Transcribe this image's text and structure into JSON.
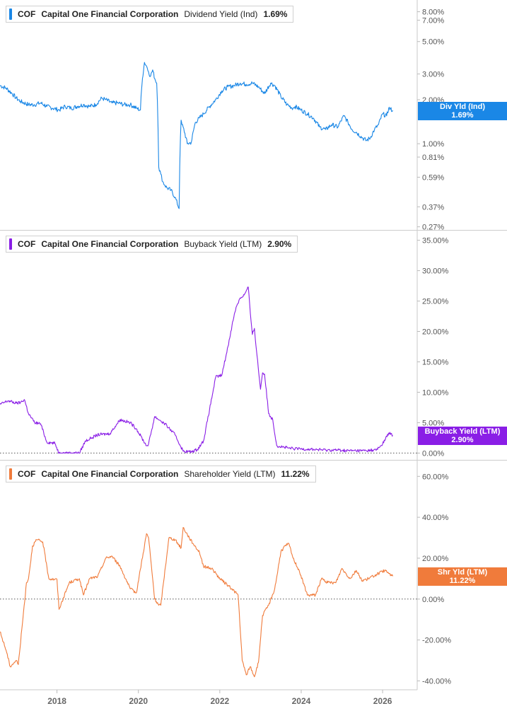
{
  "chart_data": [
    {
      "type": "line",
      "legend": {
        "ticker": "COF",
        "company": "Capital One Financial Corporation",
        "metric": "Dividend Yield (Ind)",
        "value": "1.69%"
      },
      "flag": {
        "label": "Div Yld (Ind)",
        "value": "1.69%"
      },
      "color": "#1a87e6",
      "yscale": "log",
      "ylim": [
        0.26,
        9.0
      ],
      "yticks": [
        {
          "v": 8.0,
          "label": "8.00%"
        },
        {
          "v": 7.0,
          "label": "7.00%"
        },
        {
          "v": 5.0,
          "label": "5.00%"
        },
        {
          "v": 3.0,
          "label": "3.00%"
        },
        {
          "v": 2.0,
          "label": "2.00%"
        },
        {
          "v": 1.0,
          "label": "1.00%"
        },
        {
          "v": 0.81,
          "label": "0.81%"
        },
        {
          "v": 0.59,
          "label": "0.59%"
        },
        {
          "v": 0.37,
          "label": "0.37%"
        },
        {
          "v": 0.27,
          "label": "0.27%"
        }
      ],
      "zero_line": false,
      "x": [
        2016.6,
        2016.75,
        2016.9,
        2017.0,
        2017.1,
        2017.3,
        2017.45,
        2017.6,
        2017.75,
        2017.9,
        2018.05,
        2018.2,
        2018.35,
        2018.5,
        2018.65,
        2018.8,
        2018.95,
        2019.1,
        2019.2,
        2019.35,
        2019.5,
        2019.65,
        2019.8,
        2019.95,
        2020.05,
        2020.1,
        2020.15,
        2020.2,
        2020.25,
        2020.3,
        2020.35,
        2020.4,
        2020.45,
        2020.5,
        2020.55,
        2020.6,
        2020.65,
        2020.7,
        2020.8,
        2020.9,
        2021.0,
        2021.05,
        2021.07,
        2021.1,
        2021.2,
        2021.3,
        2021.4,
        2021.5,
        2021.6,
        2021.75,
        2021.9,
        2022.05,
        2022.2,
        2022.35,
        2022.5,
        2022.65,
        2022.8,
        2022.95,
        2023.1,
        2023.25,
        2023.35,
        2023.5,
        2023.65,
        2023.8,
        2023.85,
        2024.0,
        2024.15,
        2024.3,
        2024.45,
        2024.6,
        2024.75,
        2024.9,
        2025.05,
        2025.15,
        2025.25,
        2025.35,
        2025.5,
        2025.6,
        2025.7,
        2025.8,
        2025.9,
        2026.0,
        2026.1,
        2026.15,
        2026.25
      ],
      "values": [
        2.5,
        2.4,
        2.2,
        2.05,
        1.95,
        1.85,
        1.85,
        1.9,
        1.8,
        1.75,
        1.7,
        1.8,
        1.75,
        1.8,
        1.85,
        1.8,
        1.85,
        2.05,
        2.0,
        1.9,
        1.9,
        1.85,
        1.85,
        1.75,
        1.7,
        2.8,
        3.6,
        3.4,
        3.1,
        2.9,
        3.2,
        2.8,
        2.6,
        0.69,
        0.62,
        0.55,
        0.52,
        0.5,
        0.48,
        0.43,
        0.36,
        1.45,
        1.35,
        1.3,
        1.0,
        1.02,
        1.4,
        1.5,
        1.6,
        1.8,
        2.0,
        2.3,
        2.45,
        2.5,
        2.6,
        2.55,
        2.6,
        2.45,
        2.2,
        2.6,
        2.5,
        2.1,
        1.85,
        1.75,
        1.8,
        1.7,
        1.6,
        1.5,
        1.3,
        1.25,
        1.35,
        1.3,
        1.55,
        1.4,
        1.25,
        1.2,
        1.1,
        1.05,
        1.1,
        1.25,
        1.35,
        1.6,
        1.55,
        1.75,
        1.69
      ]
    },
    {
      "type": "line",
      "legend": {
        "ticker": "COF",
        "company": "Capital One Financial Corporation",
        "metric": "Buyback Yield (LTM)",
        "value": "2.90%"
      },
      "flag": {
        "label": "Buyback Yield (LTM)",
        "value": "2.90%"
      },
      "color": "#8a1ee6",
      "yscale": "linear",
      "ylim": [
        -1.0,
        36.0
      ],
      "yticks": [
        {
          "v": 35,
          "label": "35.00%"
        },
        {
          "v": 30,
          "label": "30.00%"
        },
        {
          "v": 25,
          "label": "25.00%"
        },
        {
          "v": 20,
          "label": "20.00%"
        },
        {
          "v": 15,
          "label": "15.00%"
        },
        {
          "v": 10,
          "label": "10.00%"
        },
        {
          "v": 5,
          "label": "5.00%"
        },
        {
          "v": 0,
          "label": "0.00%"
        }
      ],
      "zero_line": true,
      "x": [
        2016.6,
        2016.8,
        2017.0,
        2017.1,
        2017.2,
        2017.3,
        2017.45,
        2017.55,
        2017.6,
        2017.75,
        2017.95,
        2018.05,
        2018.3,
        2018.55,
        2018.7,
        2018.85,
        2019.0,
        2019.3,
        2019.55,
        2019.8,
        2019.95,
        2020.2,
        2020.25,
        2020.4,
        2020.55,
        2020.7,
        2020.9,
        2021.1,
        2021.3,
        2021.45,
        2021.6,
        2021.75,
        2021.9,
        2022.05,
        2022.2,
        2022.3,
        2022.4,
        2022.5,
        2022.6,
        2022.7,
        2022.75,
        2022.8,
        2022.85,
        2022.9,
        2023.0,
        2023.05,
        2023.1,
        2023.2,
        2023.3,
        2023.4,
        2023.55,
        2023.7,
        2023.85,
        2024.0,
        2024.3,
        2024.6,
        2024.9,
        2025.1,
        2025.3,
        2025.5,
        2025.6,
        2025.75,
        2025.85,
        2026.0,
        2026.15,
        2026.25
      ],
      "values": [
        8.0,
        8.6,
        8.2,
        8.3,
        8.8,
        6.5,
        5.0,
        4.9,
        4.8,
        1.8,
        1.6,
        0.0,
        0.0,
        0.0,
        2.0,
        2.5,
        3.0,
        3.2,
        5.5,
        5.0,
        4.0,
        1.2,
        1.5,
        6.0,
        5.3,
        4.5,
        3.0,
        0.3,
        0.2,
        0.6,
        2.0,
        7.2,
        12.5,
        12.8,
        17.5,
        21.0,
        24.0,
        25.5,
        26.0,
        27.3,
        23.0,
        19.5,
        20.5,
        17.0,
        10.5,
        13.2,
        13.0,
        6.5,
        5.5,
        1.2,
        1.0,
        0.8,
        0.7,
        0.7,
        0.6,
        0.5,
        0.5,
        0.4,
        0.4,
        0.4,
        0.4,
        0.5,
        0.5,
        1.5,
        3.3,
        2.9
      ]
    },
    {
      "type": "line",
      "legend": {
        "ticker": "COF",
        "company": "Capital One Financial Corporation",
        "metric": "Shareholder Yield (LTM)",
        "value": "11.22%"
      },
      "flag": {
        "label": "Shr Yld (LTM)",
        "value": "11.22%"
      },
      "color": "#f07b3b",
      "yscale": "linear",
      "ylim": [
        -44.0,
        66.0
      ],
      "yticks": [
        {
          "v": 60,
          "label": "60.00%"
        },
        {
          "v": 40,
          "label": "40.00%"
        },
        {
          "v": 20,
          "label": "20.00%"
        },
        {
          "v": 0,
          "label": "0.00%"
        },
        {
          "v": -20,
          "label": "-20.00%"
        },
        {
          "v": -40,
          "label": "-40.00%"
        }
      ],
      "zero_line": true,
      "x": [
        2016.6,
        2016.75,
        2016.85,
        2017.0,
        2017.05,
        2017.25,
        2017.3,
        2017.4,
        2017.5,
        2017.65,
        2017.8,
        2018.0,
        2018.05,
        2018.3,
        2018.55,
        2018.65,
        2018.8,
        2019.0,
        2019.2,
        2019.35,
        2019.55,
        2019.8,
        2019.95,
        2020.2,
        2020.25,
        2020.4,
        2020.5,
        2020.55,
        2020.75,
        2020.9,
        2021.05,
        2021.1,
        2021.25,
        2021.35,
        2021.5,
        2021.6,
        2021.8,
        2022.0,
        2022.3,
        2022.45,
        2022.55,
        2022.65,
        2022.75,
        2022.85,
        2022.95,
        2023.05,
        2023.2,
        2023.35,
        2023.5,
        2023.6,
        2023.7,
        2023.8,
        2023.95,
        2024.15,
        2024.35,
        2024.5,
        2024.65,
        2024.85,
        2025.0,
        2025.2,
        2025.35,
        2025.5,
        2025.65,
        2025.85,
        2026.05,
        2026.25
      ],
      "values": [
        -16,
        -25,
        -33,
        -30,
        -32,
        8,
        10,
        26,
        29,
        28,
        10,
        9.5,
        -5,
        8,
        10,
        2,
        10,
        11,
        20,
        21,
        16,
        5,
        3,
        32,
        30,
        0,
        -3,
        -3,
        30,
        29,
        25,
        35,
        30,
        27,
        23,
        16,
        15,
        10,
        5,
        2,
        -30,
        -37,
        -33,
        -38,
        -31,
        -8,
        -3,
        5,
        23,
        26,
        27,
        20,
        14,
        2,
        2,
        10,
        8,
        8,
        15,
        10,
        14,
        9,
        10,
        12,
        14,
        11.22
      ]
    }
  ],
  "xaxis": {
    "range": [
      2016.6,
      2026.85
    ],
    "ticks": [
      {
        "v": 2018,
        "label": "2018"
      },
      {
        "v": 2020,
        "label": "2020"
      },
      {
        "v": 2022,
        "label": "2022"
      },
      {
        "v": 2024,
        "label": "2024"
      },
      {
        "v": 2026,
        "label": "2026"
      }
    ]
  }
}
